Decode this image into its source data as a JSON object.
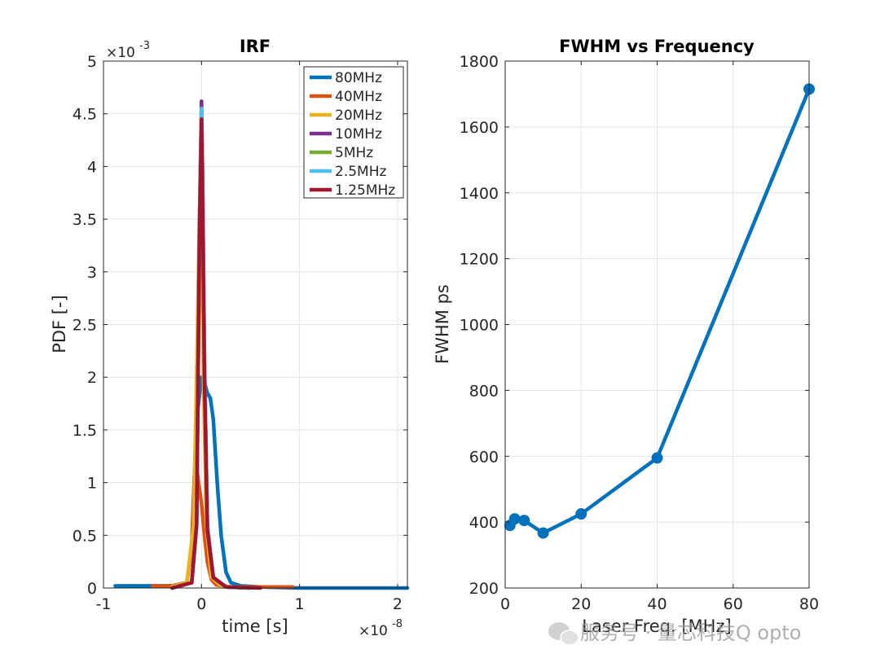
{
  "chart_data": [
    {
      "type": "line",
      "title": "IRF",
      "xlabel": "time [s]",
      "ylabel": "PDF [-]",
      "x_exponent_label": "×10",
      "x_exponent": "-8",
      "y_exponent_label": "×10",
      "y_exponent": "-3",
      "xlim": [
        -1,
        2.1
      ],
      "ylim": [
        0,
        5
      ],
      "xticks": [
        -1,
        0,
        1,
        2
      ],
      "xtick_labels": [
        "-1",
        "0",
        "1",
        "2"
      ],
      "yticks": [
        0,
        0.5,
        1,
        1.5,
        2,
        2.5,
        3,
        3.5,
        4,
        4.5,
        5
      ],
      "ytick_labels": [
        "0",
        "0.5",
        "1",
        "1.5",
        "2",
        "2.5",
        "3",
        "3.5",
        "4",
        "4.5",
        "5"
      ],
      "grid": true,
      "legend_position": "top-right",
      "series": [
        {
          "name": "80MHz",
          "color": "#0072BD",
          "x": [
            -0.88,
            -0.5,
            -0.3,
            -0.15,
            -0.1,
            -0.05,
            0.0,
            0.03,
            0.06,
            0.09,
            0.12,
            0.16,
            0.2,
            0.25,
            0.3,
            0.4,
            0.6,
            1.0,
            1.5,
            2.1
          ],
          "y": [
            0.02,
            0.02,
            0.02,
            0.05,
            0.4,
            1.6,
            2.0,
            1.95,
            1.85,
            1.8,
            1.6,
            1.0,
            0.5,
            0.15,
            0.05,
            0.02,
            0.01,
            0.0,
            0.0,
            0.0
          ]
        },
        {
          "name": "40MHz",
          "color": "#D95319",
          "x": [
            -0.5,
            -0.3,
            -0.15,
            -0.1,
            -0.07,
            -0.05,
            -0.03,
            0.0,
            0.03,
            0.06,
            0.1,
            0.15,
            0.3,
            0.5,
            0.93
          ],
          "y": [
            0.02,
            0.02,
            0.05,
            0.4,
            1.1,
            1.15,
            1.0,
            0.8,
            0.5,
            0.25,
            0.08,
            0.03,
            0.01,
            0.01,
            0.01
          ]
        },
        {
          "name": "20MHz",
          "color": "#EDB120",
          "x": [
            -0.3,
            -0.15,
            -0.08,
            -0.04,
            -0.02,
            0.0,
            0.02,
            0.05,
            0.1,
            0.2,
            0.4
          ],
          "y": [
            0.01,
            0.05,
            0.6,
            2.5,
            3.6,
            3.3,
            2.0,
            0.6,
            0.1,
            0.02,
            0.0
          ]
        },
        {
          "name": "10MHz",
          "color": "#7E2F8E",
          "x": [
            -0.3,
            -0.1,
            -0.05,
            -0.02,
            0.0,
            0.01,
            0.03,
            0.06,
            0.12,
            0.25,
            0.5
          ],
          "y": [
            0.0,
            0.05,
            0.6,
            3.5,
            4.62,
            4.0,
            2.2,
            0.6,
            0.1,
            0.01,
            0.0
          ]
        },
        {
          "name": "5MHz",
          "color": "#77AC30",
          "x": [
            -0.3,
            -0.1,
            -0.05,
            -0.02,
            0.0,
            0.01,
            0.03,
            0.06,
            0.12,
            0.25,
            0.5
          ],
          "y": [
            0.0,
            0.05,
            0.6,
            3.4,
            4.4,
            3.8,
            2.1,
            0.6,
            0.1,
            0.01,
            0.0
          ]
        },
        {
          "name": "2.5MHz",
          "color": "#4DBEEE",
          "x": [
            -0.3,
            -0.1,
            -0.05,
            -0.02,
            0.0,
            0.01,
            0.03,
            0.06,
            0.12,
            0.25,
            0.5
          ],
          "y": [
            0.0,
            0.05,
            0.6,
            3.5,
            4.55,
            3.9,
            2.1,
            0.6,
            0.1,
            0.01,
            0.0
          ]
        },
        {
          "name": "1.25MHz",
          "color": "#A2142F",
          "x": [
            -0.3,
            -0.1,
            -0.05,
            -0.02,
            0.0,
            0.01,
            0.03,
            0.06,
            0.12,
            0.25,
            0.6
          ],
          "y": [
            0.0,
            0.05,
            0.6,
            3.4,
            4.45,
            3.8,
            2.0,
            0.55,
            0.1,
            0.01,
            0.0
          ]
        }
      ]
    },
    {
      "type": "line",
      "title": "FWHM vs Frequency",
      "xlabel": "Laser Freq. [MHz]",
      "ylabel": "FWHM ps",
      "xlim": [
        0,
        80
      ],
      "ylim": [
        200,
        1800
      ],
      "xticks": [
        0,
        20,
        40,
        60,
        80
      ],
      "xtick_labels": [
        "0",
        "20",
        "40",
        "60",
        "80"
      ],
      "yticks": [
        200,
        400,
        600,
        800,
        1000,
        1200,
        1400,
        1600,
        1800
      ],
      "ytick_labels": [
        "200",
        "400",
        "600",
        "800",
        "1000",
        "1200",
        "1400",
        "1600",
        "1800"
      ],
      "grid": true,
      "series": [
        {
          "color": "#0072BD",
          "marker": "circle",
          "x": [
            1.25,
            2.5,
            5,
            10,
            20,
            40,
            80
          ],
          "y": [
            390,
            410,
            405,
            367,
            425,
            595,
            1715
          ]
        }
      ]
    }
  ],
  "watermark": {
    "text": "服务号 · 量芯科技Q opto",
    "icon": "wechat-icon"
  }
}
